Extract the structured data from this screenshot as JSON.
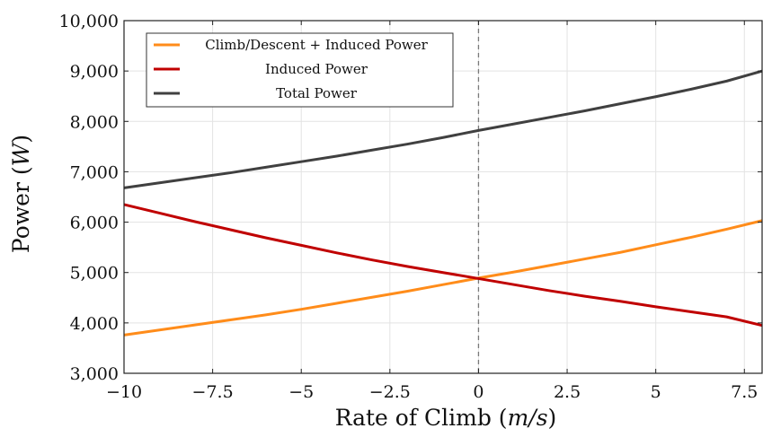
{
  "chart_data": {
    "type": "line",
    "title": "",
    "xlabel": "Rate of Climb (m/s)",
    "xlabel_parts": {
      "text": "Rate of Climb (",
      "math": "m/s",
      "close": ")"
    },
    "ylabel": "Power (W)",
    "ylabel_parts": {
      "text": "Power (",
      "math": "W",
      "close": ")"
    },
    "xlim": [
      -10,
      8
    ],
    "ylim": [
      3000,
      10000
    ],
    "xticks": [
      -10,
      -7.5,
      -5,
      -2.5,
      0,
      2.5,
      5,
      7.5
    ],
    "xtick_labels": [
      "−10",
      "−7.5",
      "−5",
      "−2.5",
      "0",
      "2.5",
      "5",
      "7.5"
    ],
    "yticks": [
      3000,
      4000,
      5000,
      6000,
      7000,
      8000,
      9000,
      10000
    ],
    "ytick_labels": [
      "3,000",
      "4,000",
      "5,000",
      "6,000",
      "7,000",
      "8,000",
      "9,000",
      "10,000"
    ],
    "grid": true,
    "legend_position": "top-left",
    "reference_line": {
      "x": 0,
      "style": "dashed",
      "color": "#7a7a7a"
    },
    "x": [
      -10,
      -9,
      -8,
      -7,
      -6,
      -5,
      -4,
      -3,
      -2,
      -1,
      0,
      1,
      2,
      3,
      4,
      5,
      6,
      7,
      8
    ],
    "series": [
      {
        "name": "Climb/Descent + Induced Power",
        "color": "#ff8c1a",
        "values": [
          3760,
          3860,
          3960,
          4060,
          4160,
          4270,
          4390,
          4510,
          4630,
          4760,
          4890,
          5010,
          5140,
          5270,
          5400,
          5550,
          5700,
          5860,
          6030
        ]
      },
      {
        "name": "Induced Power",
        "color": "#c00000",
        "values": [
          6350,
          6180,
          6010,
          5850,
          5690,
          5540,
          5390,
          5250,
          5120,
          5000,
          4880,
          4760,
          4640,
          4530,
          4430,
          4320,
          4220,
          4120,
          3950
        ]
      },
      {
        "name": "Total Power",
        "color": "#404040",
        "values": [
          6680,
          6780,
          6880,
          6980,
          7090,
          7200,
          7310,
          7430,
          7550,
          7680,
          7820,
          7950,
          8080,
          8210,
          8350,
          8490,
          8640,
          8800,
          9000
        ]
      }
    ]
  }
}
